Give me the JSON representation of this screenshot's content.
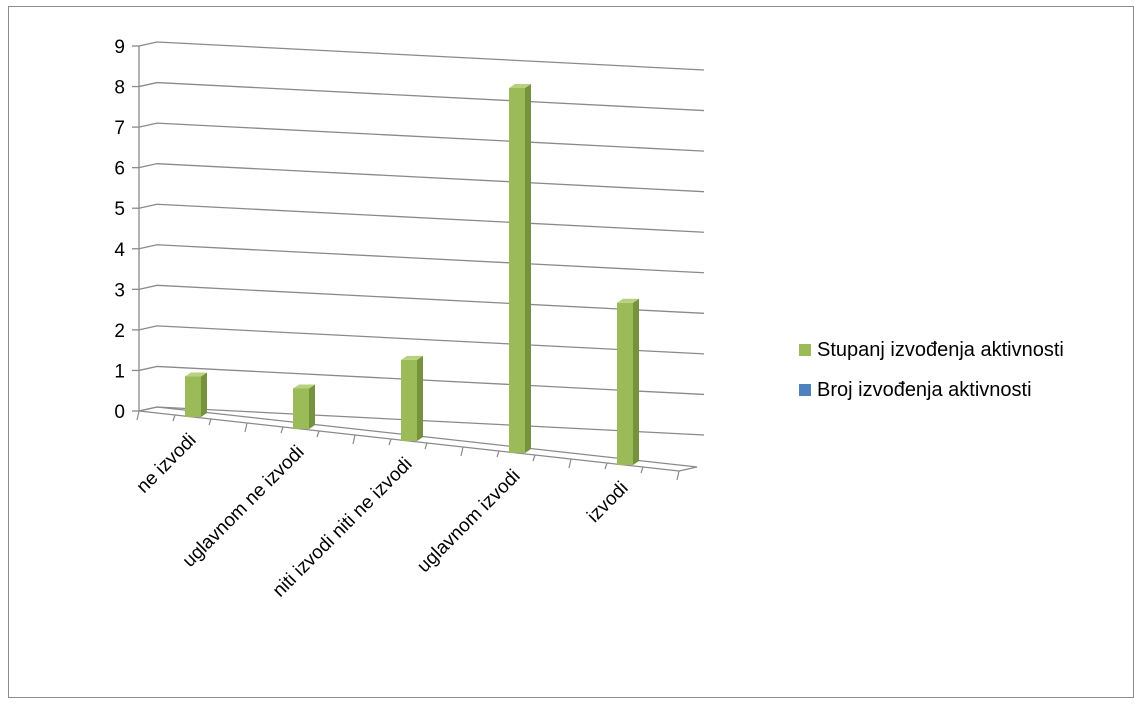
{
  "chart_data": {
    "type": "bar",
    "categories": [
      "ne izvodi",
      "uglavnom ne izvodi",
      "niti izvodi niti ne izvodi",
      "uglavnom izvodi",
      "izvodi"
    ],
    "series": [
      {
        "name": "Stupanj izvođenja aktivnosti",
        "values": [
          1,
          1,
          2,
          9,
          4
        ],
        "color": "#9bbb59"
      },
      {
        "name": "Broj izvođenja aktivnosti",
        "values": [
          0,
          0,
          0,
          0,
          0
        ],
        "color": "#4f81bd"
      }
    ],
    "yticks": [
      "0",
      "1",
      "2",
      "3",
      "4",
      "5",
      "6",
      "7",
      "8",
      "9"
    ],
    "ylim": [
      0,
      9
    ],
    "grid": true,
    "legend_position": "right",
    "style": "3d-perspective"
  }
}
